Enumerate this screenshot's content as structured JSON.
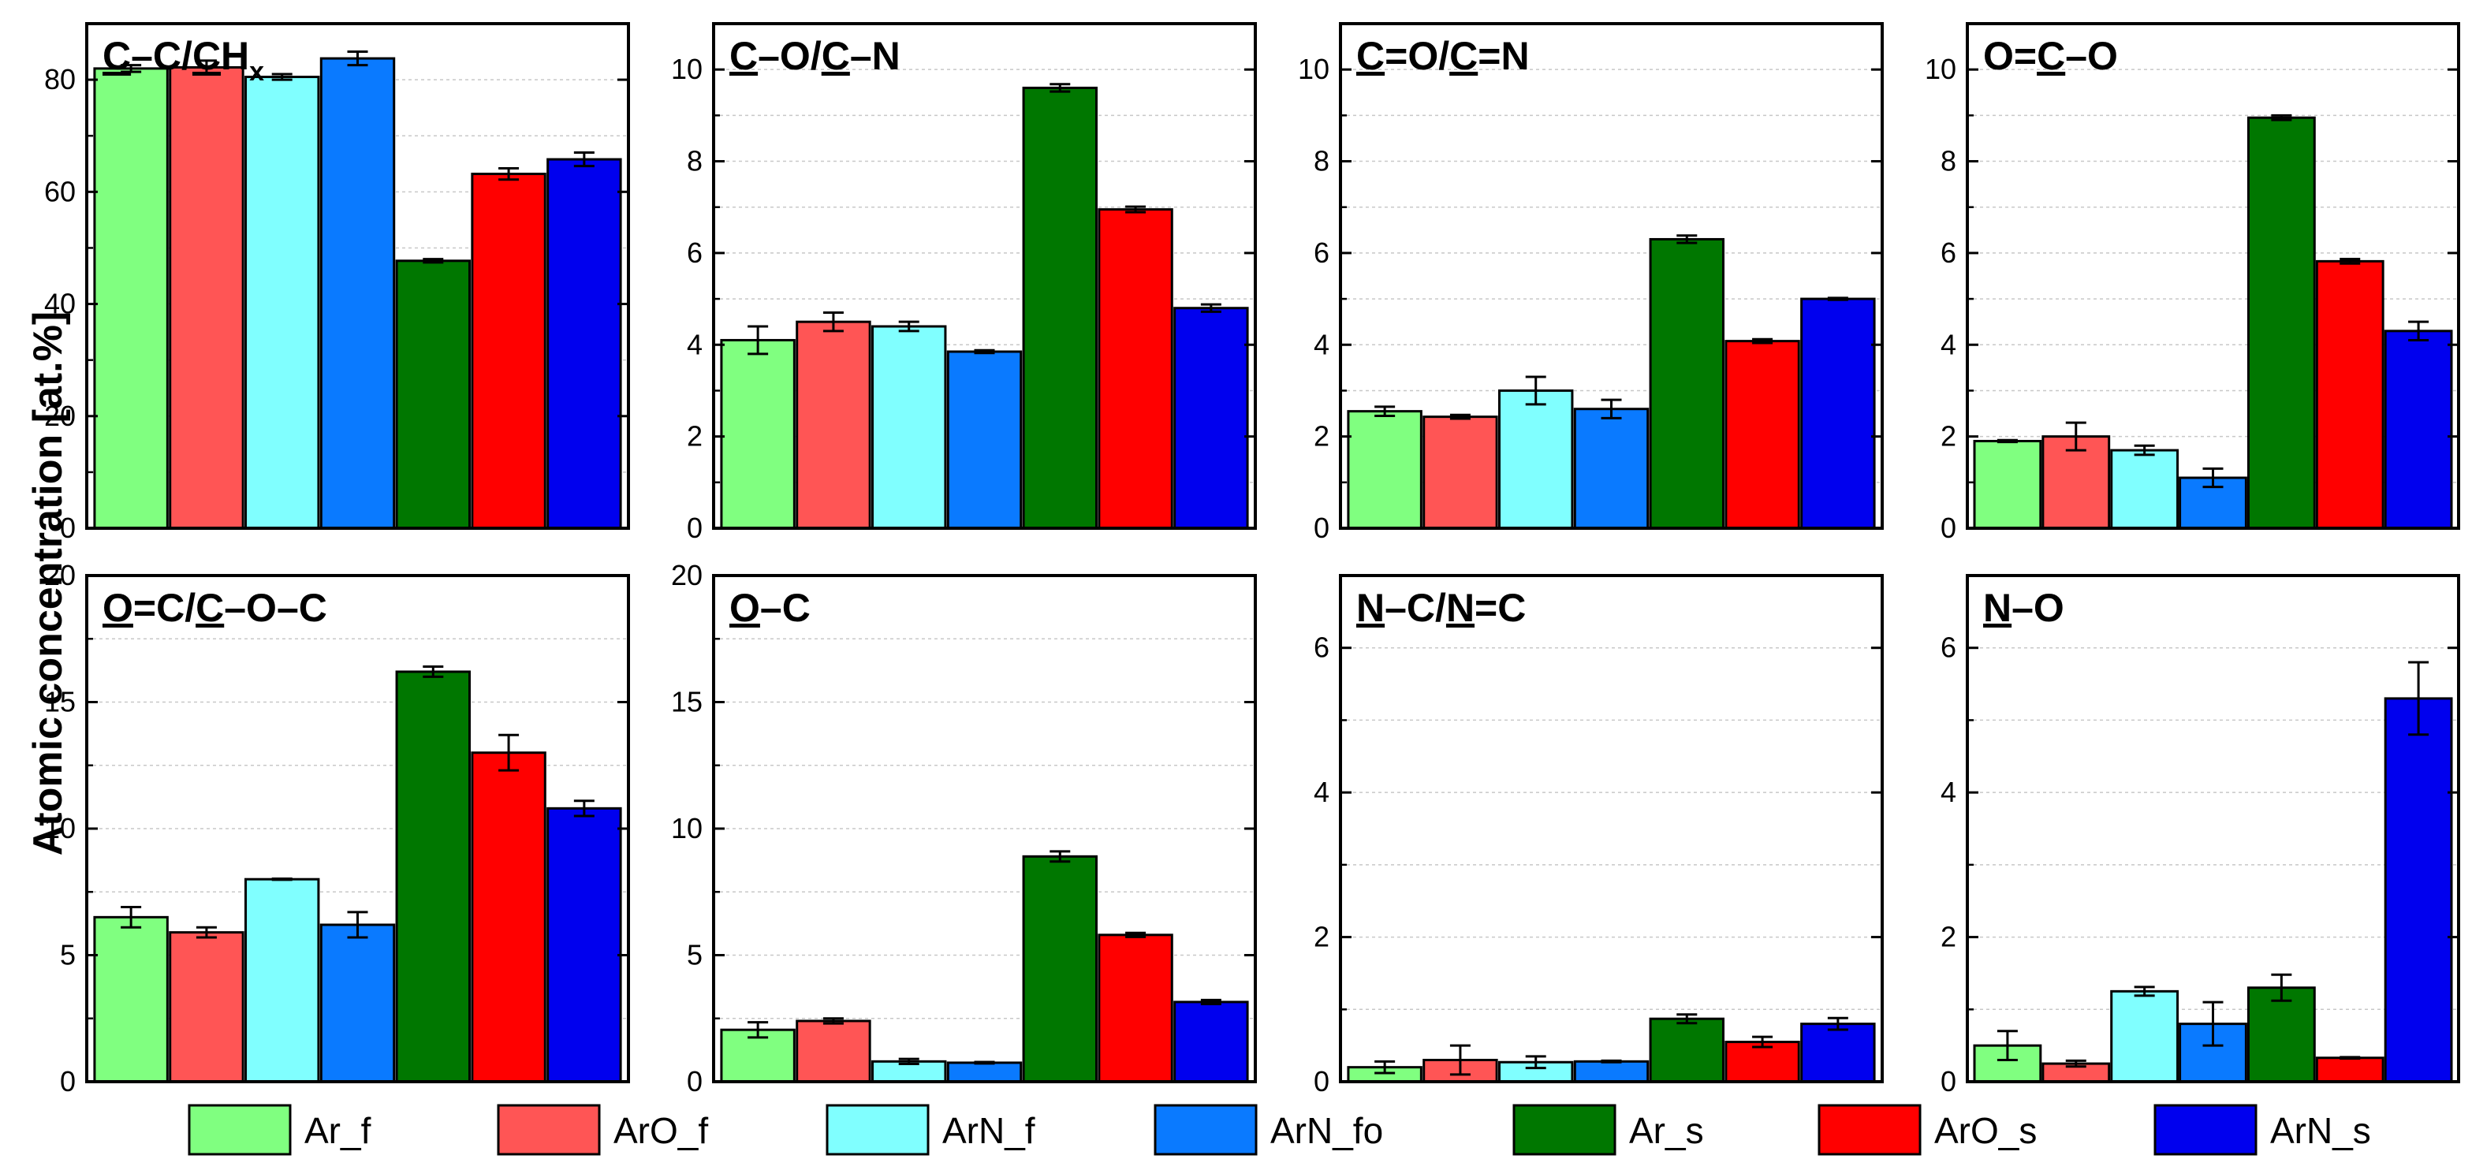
{
  "figure": {
    "ylabel": "Atomic concentration [at.%]",
    "series_names": [
      "Ar_f",
      "ArO_f",
      "ArN_f",
      "ArN_fo",
      "Ar_s",
      "ArO_s",
      "ArN_s"
    ],
    "series_colors": [
      "#80ff80",
      "#ff5555",
      "#80ffff",
      "#0a7aff",
      "#007700",
      "#ff0000",
      "#0000ee"
    ]
  },
  "chart_data": [
    {
      "type": "bar",
      "title": "C–C/CH",
      "title_suffix": "x",
      "underlined": [
        "C",
        "C"
      ],
      "categories": [
        "Ar_f",
        "ArO_f",
        "ArN_f",
        "ArN_fo",
        "Ar_s",
        "ArO_s",
        "ArN_s"
      ],
      "values": [
        82.0,
        82.2,
        80.5,
        83.8,
        47.7,
        63.2,
        65.8
      ],
      "errors": [
        0.6,
        1.2,
        0.5,
        1.2,
        0.3,
        1.0,
        1.2
      ],
      "ylim": [
        0,
        90
      ],
      "yticks": [
        0,
        20,
        40,
        60,
        80
      ],
      "grid": true
    },
    {
      "type": "bar",
      "title": "C–O/C–N",
      "categories": [
        "Ar_f",
        "ArO_f",
        "ArN_f",
        "ArN_fo",
        "Ar_s",
        "ArO_s",
        "ArN_s"
      ],
      "values": [
        4.1,
        4.5,
        4.4,
        3.85,
        9.6,
        6.95,
        4.8
      ],
      "errors": [
        0.3,
        0.2,
        0.1,
        0.03,
        0.08,
        0.06,
        0.08
      ],
      "ylim": [
        0,
        11
      ],
      "yticks": [
        0,
        2,
        4,
        6,
        8,
        10
      ],
      "grid": true
    },
    {
      "type": "bar",
      "title": "C=O/C=N",
      "categories": [
        "Ar_f",
        "ArO_f",
        "ArN_f",
        "ArN_fo",
        "Ar_s",
        "ArO_s",
        "ArN_s"
      ],
      "values": [
        2.55,
        2.43,
        3.0,
        2.6,
        6.3,
        4.08,
        5.0
      ],
      "errors": [
        0.1,
        0.04,
        0.3,
        0.2,
        0.08,
        0.04,
        0.02
      ],
      "ylim": [
        0,
        11
      ],
      "yticks": [
        0,
        2,
        4,
        6,
        8,
        10
      ],
      "grid": true
    },
    {
      "type": "bar",
      "title": "O=C–O",
      "categories": [
        "Ar_f",
        "ArO_f",
        "ArN_f",
        "ArN_fo",
        "Ar_s",
        "ArO_s",
        "ArN_s"
      ],
      "values": [
        1.9,
        2.0,
        1.7,
        1.1,
        8.95,
        5.82,
        4.3
      ],
      "errors": [
        0.02,
        0.3,
        0.1,
        0.2,
        0.05,
        0.05,
        0.2
      ],
      "ylim": [
        0,
        11
      ],
      "yticks": [
        0,
        2,
        4,
        6,
        8,
        10
      ],
      "grid": true
    },
    {
      "type": "bar",
      "title": "O=C/C–O–C",
      "categories": [
        "Ar_f",
        "ArO_f",
        "ArN_f",
        "ArN_fo",
        "Ar_s",
        "ArO_s",
        "ArN_s"
      ],
      "values": [
        6.5,
        5.9,
        8.0,
        6.2,
        16.2,
        13.0,
        10.8
      ],
      "errors": [
        0.4,
        0.2,
        0.02,
        0.5,
        0.2,
        0.7,
        0.3
      ],
      "ylim": [
        0,
        20
      ],
      "yticks": [
        0,
        5,
        10,
        15,
        20
      ],
      "grid": true
    },
    {
      "type": "bar",
      "title": "O–C",
      "categories": [
        "Ar_f",
        "ArO_f",
        "ArN_f",
        "ArN_fo",
        "Ar_s",
        "ArO_s",
        "ArN_s"
      ],
      "values": [
        2.05,
        2.4,
        0.8,
        0.75,
        8.9,
        5.8,
        3.15
      ],
      "errors": [
        0.3,
        0.1,
        0.1,
        0.03,
        0.2,
        0.08,
        0.08
      ],
      "ylim": [
        0,
        20
      ],
      "yticks": [
        0,
        5,
        10,
        15,
        20
      ],
      "grid": true
    },
    {
      "type": "bar",
      "title": "N–C/N=C",
      "categories": [
        "Ar_f",
        "ArO_f",
        "ArN_f",
        "ArN_fo",
        "Ar_s",
        "ArO_s",
        "ArN_s"
      ],
      "values": [
        0.2,
        0.3,
        0.27,
        0.28,
        0.87,
        0.55,
        0.8
      ],
      "errors": [
        0.08,
        0.2,
        0.08,
        0.01,
        0.06,
        0.07,
        0.08
      ],
      "ylim": [
        0,
        7
      ],
      "yticks": [
        0,
        2,
        4,
        6
      ],
      "grid": true
    },
    {
      "type": "bar",
      "title": "N–O",
      "categories": [
        "Ar_f",
        "ArO_f",
        "ArN_f",
        "ArN_fo",
        "Ar_s",
        "ArO_s",
        "ArN_s"
      ],
      "values": [
        0.5,
        0.25,
        1.25,
        0.8,
        1.3,
        0.33,
        5.3
      ],
      "errors": [
        0.2,
        0.04,
        0.06,
        0.3,
        0.18,
        0.01,
        0.5
      ],
      "ylim": [
        0,
        7
      ],
      "yticks": [
        0,
        2,
        4,
        6
      ],
      "grid": true
    }
  ]
}
